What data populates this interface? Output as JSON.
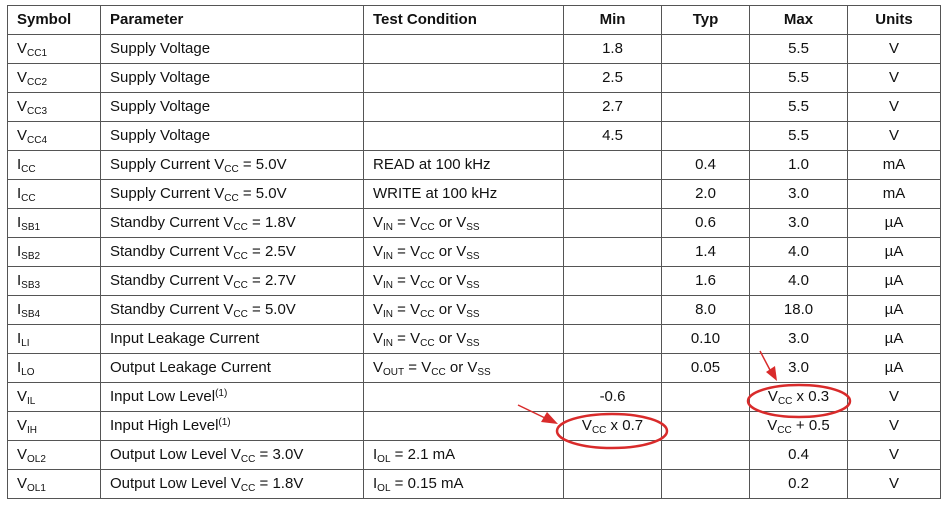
{
  "headers": [
    "Symbol",
    "Parameter",
    "Test Condition",
    "Min",
    "Typ",
    "Max",
    "Units"
  ],
  "rows": [
    {
      "sym": "V",
      "sym_sub": "CC1",
      "param": [
        {
          "t": "Supply Voltage"
        }
      ],
      "cond": [],
      "min": "1.8",
      "typ": "",
      "max": [
        {
          "t": "5.5"
        }
      ],
      "units": "V"
    },
    {
      "sym": "V",
      "sym_sub": "CC2",
      "param": [
        {
          "t": "Supply Voltage"
        }
      ],
      "cond": [],
      "min": "2.5",
      "typ": "",
      "max": [
        {
          "t": "5.5"
        }
      ],
      "units": "V"
    },
    {
      "sym": "V",
      "sym_sub": "CC3",
      "param": [
        {
          "t": "Supply Voltage"
        }
      ],
      "cond": [],
      "min": "2.7",
      "typ": "",
      "max": [
        {
          "t": "5.5"
        }
      ],
      "units": "V"
    },
    {
      "sym": "V",
      "sym_sub": "CC4",
      "param": [
        {
          "t": "Supply Voltage"
        }
      ],
      "cond": [],
      "min": "4.5",
      "typ": "",
      "max": [
        {
          "t": "5.5"
        }
      ],
      "units": "V"
    },
    {
      "sym": "I",
      "sym_sub": "CC",
      "param": [
        {
          "t": "Supply Current V"
        },
        {
          "t": "CC",
          "sub": true
        },
        {
          "t": " = 5.0V"
        }
      ],
      "cond": [
        {
          "t": "READ at 100 kHz"
        }
      ],
      "min": "",
      "typ": "0.4",
      "max": [
        {
          "t": "1.0"
        }
      ],
      "units": "mA"
    },
    {
      "sym": "I",
      "sym_sub": "CC",
      "param": [
        {
          "t": "Supply Current V"
        },
        {
          "t": "CC",
          "sub": true
        },
        {
          "t": " = 5.0V"
        }
      ],
      "cond": [
        {
          "t": "WRITE at 100 kHz"
        }
      ],
      "min": "",
      "typ": "2.0",
      "max": [
        {
          "t": "3.0"
        }
      ],
      "units": "mA"
    },
    {
      "sym": "I",
      "sym_sub": "SB1",
      "param": [
        {
          "t": "Standby Current V"
        },
        {
          "t": "CC",
          "sub": true
        },
        {
          "t": " = 1.8V"
        }
      ],
      "cond": [
        {
          "t": "V"
        },
        {
          "t": "IN",
          "sub": true
        },
        {
          "t": " = V"
        },
        {
          "t": "CC",
          "sub": true
        },
        {
          "t": " or V"
        },
        {
          "t": "SS",
          "sub": true
        }
      ],
      "min": "",
      "typ": "0.6",
      "max": [
        {
          "t": "3.0"
        }
      ],
      "units": "µA"
    },
    {
      "sym": "I",
      "sym_sub": "SB2",
      "param": [
        {
          "t": "Standby Current V"
        },
        {
          "t": "CC",
          "sub": true
        },
        {
          "t": " = 2.5V"
        }
      ],
      "cond": [
        {
          "t": "V"
        },
        {
          "t": "IN",
          "sub": true
        },
        {
          "t": " = V"
        },
        {
          "t": "CC",
          "sub": true
        },
        {
          "t": " or V"
        },
        {
          "t": "SS",
          "sub": true
        }
      ],
      "min": "",
      "typ": "1.4",
      "max": [
        {
          "t": "4.0"
        }
      ],
      "units": "µA"
    },
    {
      "sym": "I",
      "sym_sub": "SB3",
      "param": [
        {
          "t": "Standby Current V"
        },
        {
          "t": "CC",
          "sub": true
        },
        {
          "t": " = 2.7V"
        }
      ],
      "cond": [
        {
          "t": "V"
        },
        {
          "t": "IN",
          "sub": true
        },
        {
          "t": " = V"
        },
        {
          "t": "CC",
          "sub": true
        },
        {
          "t": " or V"
        },
        {
          "t": "SS",
          "sub": true
        }
      ],
      "min": "",
      "typ": "1.6",
      "max": [
        {
          "t": "4.0"
        }
      ],
      "units": "µA"
    },
    {
      "sym": "I",
      "sym_sub": "SB4",
      "param": [
        {
          "t": "Standby Current V"
        },
        {
          "t": "CC",
          "sub": true
        },
        {
          "t": " = 5.0V"
        }
      ],
      "cond": [
        {
          "t": "V"
        },
        {
          "t": "IN",
          "sub": true
        },
        {
          "t": " = V"
        },
        {
          "t": "CC",
          "sub": true
        },
        {
          "t": " or V"
        },
        {
          "t": "SS",
          "sub": true
        }
      ],
      "min": "",
      "typ": "8.0",
      "max": [
        {
          "t": "18.0"
        }
      ],
      "units": "µA"
    },
    {
      "sym": "I",
      "sym_sub": "LI",
      "param": [
        {
          "t": "Input Leakage Current"
        }
      ],
      "cond": [
        {
          "t": "V"
        },
        {
          "t": "IN",
          "sub": true
        },
        {
          "t": " = V"
        },
        {
          "t": "CC",
          "sub": true
        },
        {
          "t": " or V"
        },
        {
          "t": "SS",
          "sub": true
        }
      ],
      "min": "",
      "typ": "0.10",
      "max": [
        {
          "t": "3.0"
        }
      ],
      "units": "µA"
    },
    {
      "sym": "I",
      "sym_sub": "LO",
      "param": [
        {
          "t": "Output Leakage Current"
        }
      ],
      "cond": [
        {
          "t": "V"
        },
        {
          "t": "OUT",
          "sub": true
        },
        {
          "t": " = V"
        },
        {
          "t": "CC",
          "sub": true
        },
        {
          "t": " or V"
        },
        {
          "t": "SS",
          "sub": true
        }
      ],
      "min": "",
      "typ": "0.05",
      "max": [
        {
          "t": "3.0"
        }
      ],
      "units": "µA"
    },
    {
      "sym": "V",
      "sym_sub": "IL",
      "param": [
        {
          "t": "Input Low Level"
        },
        {
          "t": "(1)",
          "sup": true
        }
      ],
      "cond": [],
      "min": "-0.6",
      "typ": "",
      "max": [
        {
          "t": "V"
        },
        {
          "t": "CC",
          "sub": true
        },
        {
          "t": " x 0.3"
        }
      ],
      "units": "V"
    },
    {
      "sym": "V",
      "sym_sub": "IH",
      "param": [
        {
          "t": "Input High Level"
        },
        {
          "t": "(1)",
          "sup": true
        }
      ],
      "cond": [],
      "min_rich": [
        {
          "t": "V"
        },
        {
          "t": "CC",
          "sub": true
        },
        {
          "t": " x 0.7"
        }
      ],
      "typ": "",
      "max": [
        {
          "t": "V"
        },
        {
          "t": "CC",
          "sub": true
        },
        {
          "t": " + 0.5"
        }
      ],
      "units": "V"
    },
    {
      "sym": "V",
      "sym_sub": "OL2",
      "param": [
        {
          "t": "Output Low Level V"
        },
        {
          "t": "CC",
          "sub": true
        },
        {
          "t": " = 3.0V"
        }
      ],
      "cond": [
        {
          "t": "I"
        },
        {
          "t": "OL",
          "sub": true
        },
        {
          "t": " = 2.1 mA"
        }
      ],
      "min": "",
      "typ": "",
      "max": [
        {
          "t": "0.4"
        }
      ],
      "units": "V"
    },
    {
      "sym": "V",
      "sym_sub": "OL1",
      "param": [
        {
          "t": "Output Low Level V"
        },
        {
          "t": "CC",
          "sub": true
        },
        {
          "t": " = 1.8V"
        }
      ],
      "cond": [
        {
          "t": "I"
        },
        {
          "t": "OL",
          "sub": true
        },
        {
          "t": " = 0.15 mA"
        }
      ],
      "min": "",
      "typ": "",
      "max": [
        {
          "t": "0.2"
        }
      ],
      "units": "V"
    }
  ],
  "annotation_color": "#d92b2b"
}
